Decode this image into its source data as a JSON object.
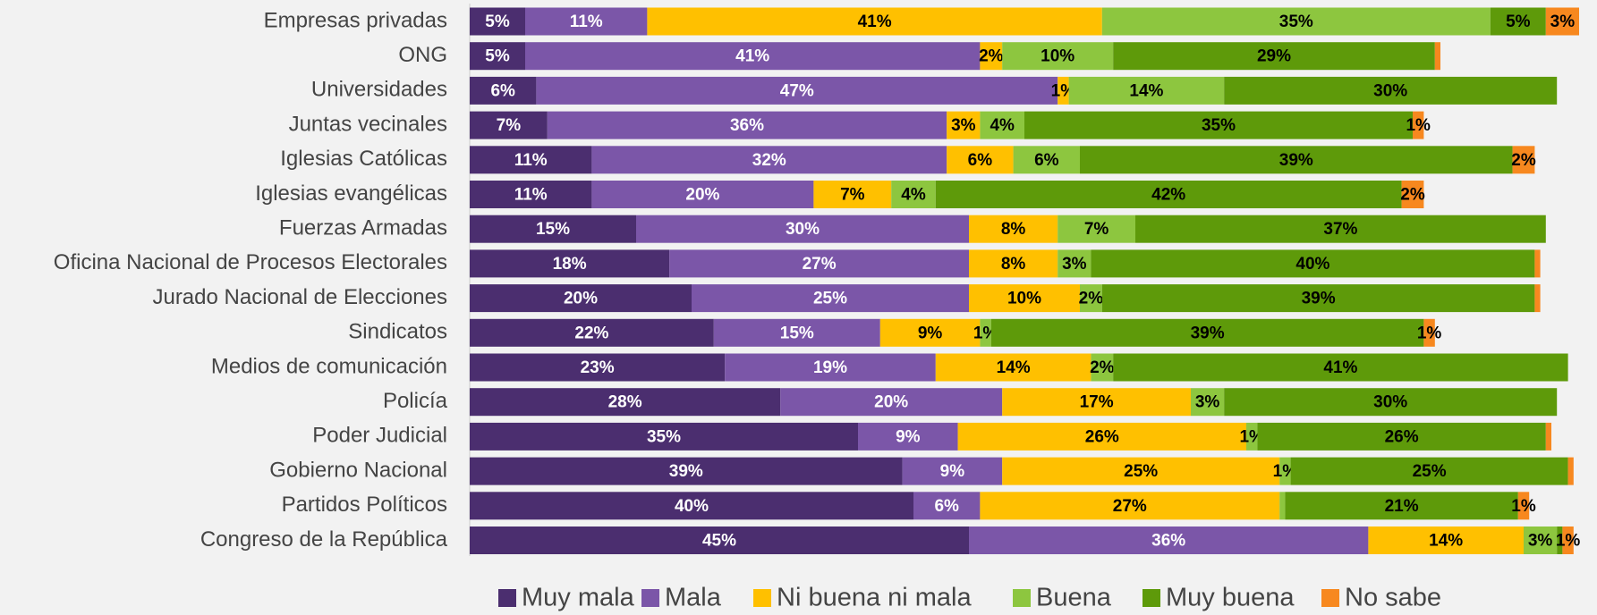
{
  "chart_data": {
    "type": "stacked-bar-horizontal",
    "categories": [
      "Empresas privadas",
      "ONG",
      "Universidades",
      "Juntas vecinales",
      "Iglesias Católicas",
      "Iglesias evangélicas",
      "Fuerzas Armadas",
      "Oficina Nacional de Procesos Electorales",
      "Jurado Nacional de Elecciones",
      "Sindicatos",
      "Medios de comunicación",
      "Policía",
      "Poder Judicial",
      "Gobierno Nacional",
      "Partidos Políticos",
      "Congreso de la República"
    ],
    "xlim": [
      0,
      100
    ],
    "series": [
      {
        "name": "Muy mala",
        "color": "#4b2e6f",
        "label_color": "#ffffff",
        "values": [
          5,
          5,
          6,
          7,
          11,
          11,
          15,
          18,
          20,
          22,
          23,
          28,
          35,
          39,
          40,
          45
        ],
        "value_labels": [
          "5%",
          "5%",
          "6%",
          "7%",
          "11%",
          "11%",
          "15%",
          "18%",
          "20%",
          "22%",
          "23%",
          "28%",
          "35%",
          "39%",
          "40%",
          "45%"
        ]
      },
      {
        "name": "Mala",
        "color": "#7b56a8",
        "label_color": "#ffffff",
        "values": [
          11,
          41,
          47,
          36,
          32,
          20,
          30,
          27,
          25,
          15,
          19,
          20,
          9,
          9,
          6,
          36
        ],
        "value_labels": [
          "11%",
          "41%",
          "47%",
          "36%",
          "32%",
          "20%",
          "30%",
          "27%",
          "25%",
          "15%",
          "19%",
          "20%",
          "9%",
          "9%",
          "6%",
          "36%"
        ]
      },
      {
        "name": "Ni buena ni mala",
        "color": "#ffc000",
        "label_color": "#000000",
        "values": [
          41,
          2,
          1,
          3,
          6,
          7,
          8,
          8,
          10,
          9,
          14,
          17,
          26,
          25,
          27,
          14
        ],
        "value_labels": [
          "41%",
          "2%",
          "1%",
          "3%",
          "6%",
          "7%",
          "8%",
          "8%",
          "10%",
          "9%",
          "14%",
          "17%",
          "26%",
          "25%",
          "27%",
          "14%"
        ]
      },
      {
        "name": "Buena",
        "color": "#8dc63f",
        "label_color": "#000000",
        "values": [
          35,
          10,
          14,
          4,
          6,
          4,
          7,
          3,
          2,
          1,
          2,
          3,
          1,
          1,
          0.5,
          3
        ],
        "value_labels": [
          "35%",
          "10%",
          "14%",
          "4%",
          "6%",
          "4%",
          "7%",
          "3%",
          "2%",
          "1%",
          "2%",
          "3%",
          "1%",
          "1%",
          null,
          "3%"
        ]
      },
      {
        "name": "Muy buena",
        "color": "#5e9a0a",
        "label_color": "#000000",
        "values": [
          5,
          29,
          30,
          35,
          39,
          42,
          37,
          40,
          39,
          39,
          41,
          30,
          26,
          25,
          21,
          0.5
        ],
        "value_labels": [
          "5%",
          "29%",
          "30%",
          "35%",
          "39%",
          "42%",
          "37%",
          "40%",
          "39%",
          "39%",
          "41%",
          "30%",
          "26%",
          "25%",
          "21%",
          null
        ]
      },
      {
        "name": "No sabe",
        "color": "#f7881f",
        "label_color": "#000000",
        "values": [
          3,
          0.5,
          null,
          1,
          2,
          2,
          null,
          0.5,
          0.5,
          1,
          null,
          null,
          0.5,
          0.5,
          1,
          1
        ],
        "value_labels": [
          "3%",
          null,
          null,
          "1%",
          "2%",
          "2%",
          null,
          null,
          null,
          "1%",
          null,
          null,
          null,
          null,
          "1%",
          "1%"
        ]
      }
    ],
    "legend": "bottom"
  }
}
